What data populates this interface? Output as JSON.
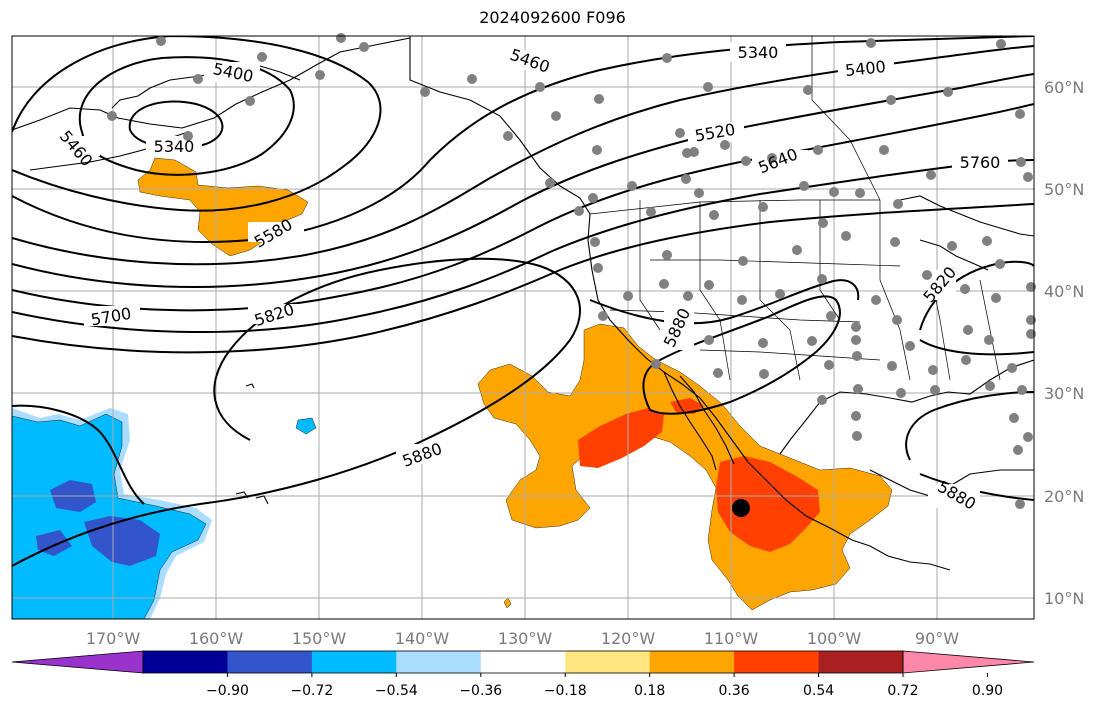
{
  "title": "2024092600 F096",
  "map": {
    "lon_labels": [
      "170°W",
      "160°W",
      "150°W",
      "140°W",
      "130°W",
      "120°W",
      "110°W",
      "100°W",
      "90°W"
    ],
    "lat_labels": [
      "60°N",
      "50°N",
      "40°N",
      "30°N",
      "20°N",
      "10°N"
    ],
    "contour_labels": [
      "5400",
      "5340",
      "5460",
      "5460",
      "5340",
      "5400",
      "5520",
      "5640",
      "5760",
      "5580",
      "5700",
      "5820",
      "5880",
      "5880",
      "5820",
      "5880"
    ],
    "marker": "storm-center"
  },
  "colorbar": {
    "colors": [
      "#9933cc",
      "#000099",
      "#3355cc",
      "#00bbff",
      "#aaddff",
      "#ffffff",
      "#ffe680",
      "#ffa500",
      "#ff4000",
      "#aa2020",
      "#ff88aa"
    ],
    "tick_labels": [
      "−0.90",
      "−0.72",
      "−0.54",
      "−0.36",
      "−0.18",
      "0.18",
      "0.36",
      "0.54",
      "0.72",
      "0.90"
    ]
  }
}
